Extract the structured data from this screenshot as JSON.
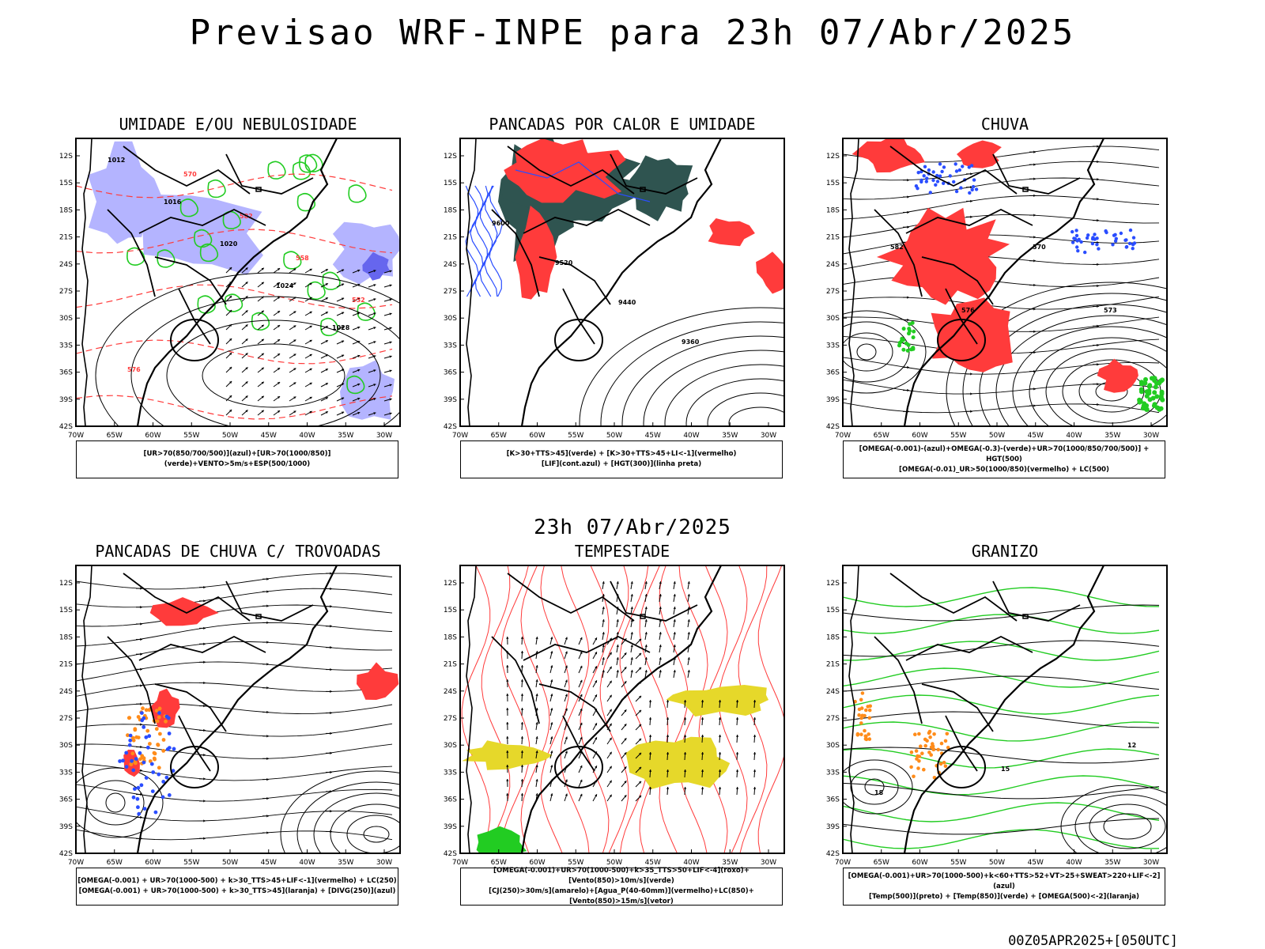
{
  "header": {
    "title": "Previsao WRF-INPE  para 23h 07/Abr/2025",
    "subtitle": "23h 07/Abr/2025",
    "footer": "00Z05APR2025+[050UTC]"
  },
  "axes": {
    "lat_labels": [
      "12S",
      "15S",
      "18S",
      "21S",
      "24S",
      "27S",
      "30S",
      "33S",
      "36S",
      "39S",
      "42S"
    ],
    "lon_labels": [
      "70W",
      "65W",
      "60W",
      "55W",
      "50W",
      "45W",
      "40W",
      "35W",
      "30W"
    ]
  },
  "colors": {
    "red": "#ff3b3b",
    "green": "#22cc22",
    "blue": "#2a4dff",
    "lavender": "#b4b4ff",
    "teal": "#2f5450",
    "orange": "#ff8c1a",
    "yellow": "#e6d82a",
    "black": "#000000"
  },
  "panels": [
    {
      "title": "UMIDADE E/OU NEBULOSIDADE",
      "legend": [
        "[UR>70(850/700/500)](azul)+[UR>70(1000/850)](verde)+VENTO>5m/s+ESP(500/1000)"
      ],
      "contour_labels": [
        "1012",
        "1016",
        "1020",
        "1024",
        "1028",
        "576",
        "570",
        "582",
        "558",
        "552"
      ]
    },
    {
      "title": "PANCADAS POR CALOR E UMIDADE",
      "legend": [
        "[K>30+TTS>45](verde) + [K>30+TTS>45+LI<-1](vermelho)",
        "[LIF](cont.azul) + [HGT(300)](linha preta)"
      ],
      "contour_labels": [
        "9600",
        "9520",
        "9440",
        "9360"
      ]
    },
    {
      "title": "CHUVA",
      "legend": [
        "[OMEGA(-0.001)-(azul)+OMEGA(-0.3)-(verde)+UR>70(1000/850/700/500)] + HGT(500)",
        "[OMEGA(-0.01)_UR>50(1000/850)(vermelho) + LC(500)"
      ],
      "contour_labels": [
        "582",
        "576",
        "570",
        "573"
      ]
    },
    {
      "title": "PANCADAS DE CHUVA C/ TROVOADAS",
      "legend": [
        "[OMEGA(-0.001) + UR>70(1000-500) + k>30_TTS>45+LIF<-1](vermelho) + LC(250)",
        "[OMEGA(-0.001) + UR>70(1000-500) + k>30_TTS>45](laranja) + [DIVG(250)](azul)"
      ],
      "contour_labels": []
    },
    {
      "title": "TEMPESTADE",
      "legend": [
        "[OMEGA(-0.001)+UR>70(1000-500)+k>35_TTS>50+LIF<-4](roxo)+[Vento(850)>10m/s](verde)",
        "[CJ(250)>30m/s](amarelo)+[Agua_P(40-60mm)](vermelho)+LC(850)+[Vento(850)>15m/s](vetor)"
      ],
      "contour_labels": []
    },
    {
      "title": "GRANIZO",
      "legend": [
        "[OMEGA(-0.001)+UR>70(1000-500)+k<60+TTS>52+VT>25+SWEAT>220+LIF<-2](azul)",
        "[Temp(500)](preto) + [Temp(850)](verde) + [OMEGA(500)<-2](laranja)"
      ],
      "contour_labels": [
        "18",
        "15",
        "12"
      ]
    }
  ]
}
